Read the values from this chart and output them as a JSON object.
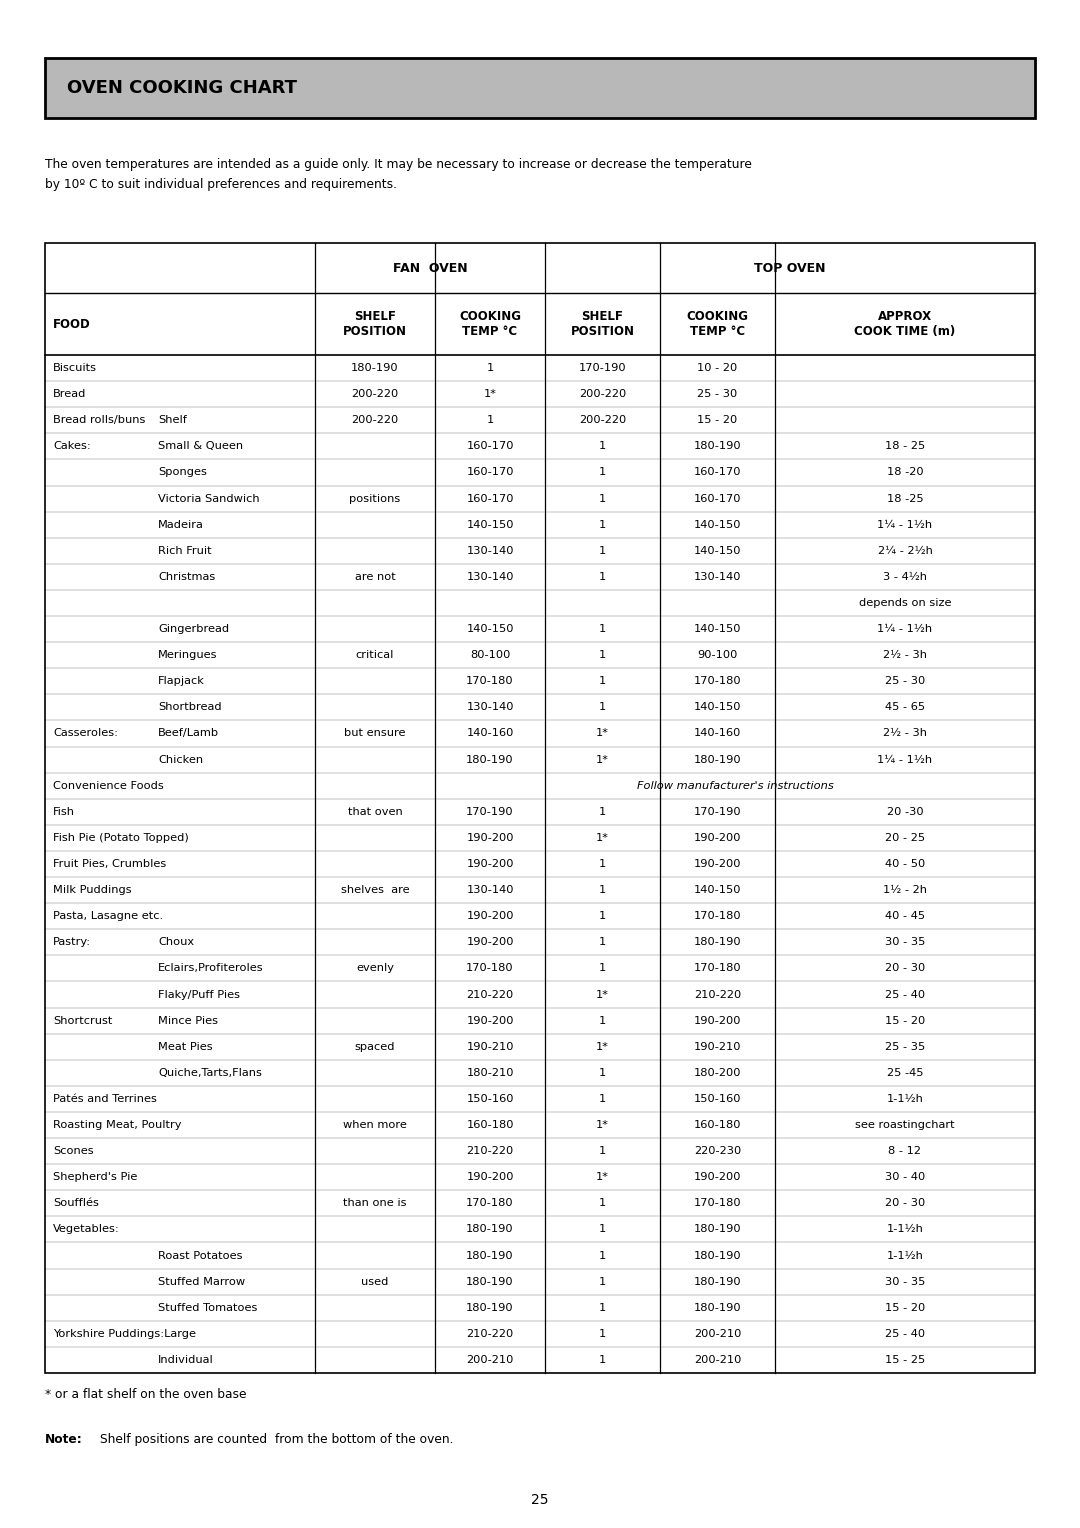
{
  "title": "OVEN COOKING CHART",
  "intro_text": "The oven temperatures are intended as a guide only. It may be necessary to increase or decrease the temperature\nby 10º C to suit individual preferences and requirements.",
  "footnote1": "* or a flat shelf on the oven base",
  "footnote2_bold": "Note:",
  "footnote2_rest": "Shelf positions are counted  from the bottom of the oven.",
  "page_number": "25",
  "rows": [
    [
      "Biscuits",
      "",
      "180-190",
      "1",
      "170-190",
      "10 - 20"
    ],
    [
      "Bread",
      "",
      "200-220",
      "1*",
      "200-220",
      "25 - 30"
    ],
    [
      "Bread rolls/buns",
      "Shelf",
      "200-220",
      "1",
      "200-220",
      "15 - 20"
    ],
    [
      "Cakes:",
      "Small & Queen",
      "",
      "160-170",
      "1",
      "180-190",
      "18 - 25"
    ],
    [
      "",
      "Sponges",
      "",
      "160-170",
      "1",
      "160-170",
      "18 -20"
    ],
    [
      "",
      "Victoria Sandwich",
      "positions",
      "160-170",
      "1",
      "160-170",
      "18 -25"
    ],
    [
      "",
      "Madeira",
      "",
      "140-150",
      "1",
      "140-150",
      "1¼ - 1½h"
    ],
    [
      "",
      "Rich Fruit",
      "",
      "130-140",
      "1",
      "140-150",
      "2¼ - 2½h"
    ],
    [
      "",
      "Christmas",
      "are not",
      "130-140",
      "1",
      "130-140",
      "3 - 4½h"
    ],
    [
      "",
      "",
      "",
      "",
      "",
      "",
      "depends on size"
    ],
    [
      "",
      "Gingerbread",
      "",
      "140-150",
      "1",
      "140-150",
      "1¼ - 1½h"
    ],
    [
      "",
      "Meringues",
      "critical",
      "80-100",
      "1",
      "90-100",
      "2½ - 3h"
    ],
    [
      "",
      "Flapjack",
      "",
      "170-180",
      "1",
      "170-180",
      "25 - 30"
    ],
    [
      "",
      "Shortbread",
      "",
      "130-140",
      "1",
      "140-150",
      "45 - 65"
    ],
    [
      "Casseroles:",
      "Beef/Lamb",
      "but ensure",
      "140-160",
      "1*",
      "140-160",
      "2½ - 3h"
    ],
    [
      "",
      "Chicken",
      "",
      "180-190",
      "1*",
      "180-190",
      "1¼ - 1½h"
    ],
    [
      "Convenience Foods",
      "",
      "",
      "SPAN:Follow manufacturer's instructions",
      "",
      "",
      ""
    ],
    [
      "Fish",
      "",
      "that oven",
      "170-190",
      "1",
      "170-190",
      "20 -30"
    ],
    [
      "Fish Pie (Potato Topped)",
      "",
      "",
      "190-200",
      "1*",
      "190-200",
      "20 - 25"
    ],
    [
      "Fruit Pies, Crumbles",
      "",
      "",
      "190-200",
      "1",
      "190-200",
      "40 - 50"
    ],
    [
      "Milk Puddings",
      "",
      "shelves  are",
      "130-140",
      "1",
      "140-150",
      "1½ - 2h"
    ],
    [
      "Pasta, Lasagne etc.",
      "",
      "",
      "190-200",
      "1",
      "170-180",
      "40 - 45"
    ],
    [
      "Pastry:",
      "Choux",
      "",
      "190-200",
      "1",
      "180-190",
      "30 - 35"
    ],
    [
      "",
      "Eclairs,Profiteroles",
      "evenly",
      "170-180",
      "1",
      "170-180",
      "20 - 30"
    ],
    [
      "",
      "Flaky/Puff Pies",
      "",
      "210-220",
      "1*",
      "210-220",
      "25 - 40"
    ],
    [
      "Shortcrust",
      "Mince Pies",
      "",
      "190-200",
      "1",
      "190-200",
      "15 - 20"
    ],
    [
      "",
      "Meat Pies",
      "spaced",
      "190-210",
      "1*",
      "190-210",
      "25 - 35"
    ],
    [
      "",
      "Quiche,Tarts,Flans",
      "",
      "180-210",
      "1",
      "180-200",
      "25 -45"
    ],
    [
      "Patés and Terrines",
      "",
      "",
      "150-160",
      "1",
      "150-160",
      "1-1½h"
    ],
    [
      "Roasting Meat, Poultry",
      "",
      "when more",
      "160-180",
      "1*",
      "160-180",
      "see roastingchart"
    ],
    [
      "Scones",
      "",
      "",
      "210-220",
      "1",
      "220-230",
      "8 - 12"
    ],
    [
      "Shepherd's Pie",
      "",
      "",
      "190-200",
      "1*",
      "190-200",
      "30 - 40"
    ],
    [
      "Soufflés",
      "",
      "than one is",
      "170-180",
      "1",
      "170-180",
      "20 - 30"
    ],
    [
      "Vegetables:",
      "",
      "",
      "180-190",
      "1",
      "180-190",
      "1-1½h"
    ],
    [
      "",
      "Roast Potatoes",
      "",
      "180-190",
      "1",
      "180-190",
      "1-1½h"
    ],
    [
      "",
      "Stuffed Marrow",
      "used",
      "180-190",
      "1",
      "180-190",
      "30 - 35"
    ],
    [
      "",
      "Stuffed Tomatoes",
      "",
      "180-190",
      "1",
      "180-190",
      "15 - 20"
    ],
    [
      "Yorkshire Puddings:Large",
      "",
      "",
      "210-220",
      "1",
      "200-210",
      "25 - 40"
    ],
    [
      "",
      "Individual",
      "",
      "200-210",
      "1",
      "200-210",
      "15 - 25"
    ]
  ],
  "bg_color": "#ffffff",
  "header_bg": "#b8b8b8",
  "border_color": "#000000",
  "title_fontsize": 13,
  "body_fontsize": 8.2,
  "header_fontsize": 8.5
}
